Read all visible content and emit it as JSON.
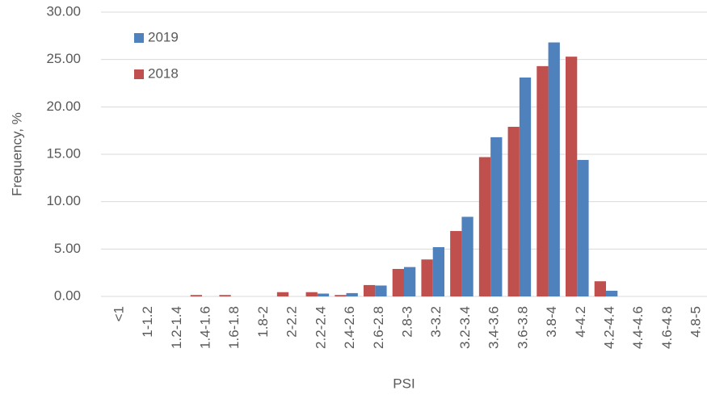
{
  "chart_data": {
    "type": "bar",
    "x_label": "PSI",
    "y_label": "Frequency, %",
    "categories": [
      "<1",
      "1-1.2",
      "1.2-1.4",
      "1.4-1.6",
      "1.6-1.8",
      "1.8-2",
      "2-2.2",
      "2.2-2.4",
      "2.4-2.6",
      "2.6-2.8",
      "2.8-3",
      "3-3.2",
      "3.2-3.4",
      "3.4-3.6",
      "3.6-3.8",
      "3.8-4",
      "4-4.2",
      "4.2-4.4",
      "4.4-4.6",
      "4.6-4.8",
      "4.8-5"
    ],
    "series": [
      {
        "name": "2019",
        "color": "#4f81bd",
        "values": [
          0,
          0,
          0,
          0,
          0,
          0,
          0,
          0.3,
          0.35,
          1.15,
          3.1,
          5.2,
          8.4,
          16.8,
          23.1,
          26.8,
          14.4,
          0.6,
          0,
          0,
          0
        ]
      },
      {
        "name": "2018",
        "color": "#c0504d",
        "values": [
          0,
          0,
          0,
          0.15,
          0.15,
          0,
          0.45,
          0.45,
          0.15,
          1.2,
          2.9,
          3.9,
          6.9,
          14.7,
          17.9,
          24.3,
          25.3,
          1.6,
          0,
          0,
          0
        ]
      }
    ],
    "ylim": [
      0,
      30
    ],
    "yticks": [
      {
        "value": 0,
        "label": "0.00"
      },
      {
        "value": 5,
        "label": "5.00"
      },
      {
        "value": 10,
        "label": "10.00"
      },
      {
        "value": 15,
        "label": "15.00"
      },
      {
        "value": 20,
        "label": "20.00"
      },
      {
        "value": 25,
        "label": "25.00"
      },
      {
        "value": 30,
        "label": "30.00"
      }
    ],
    "grid": true,
    "legend": "upper left"
  }
}
